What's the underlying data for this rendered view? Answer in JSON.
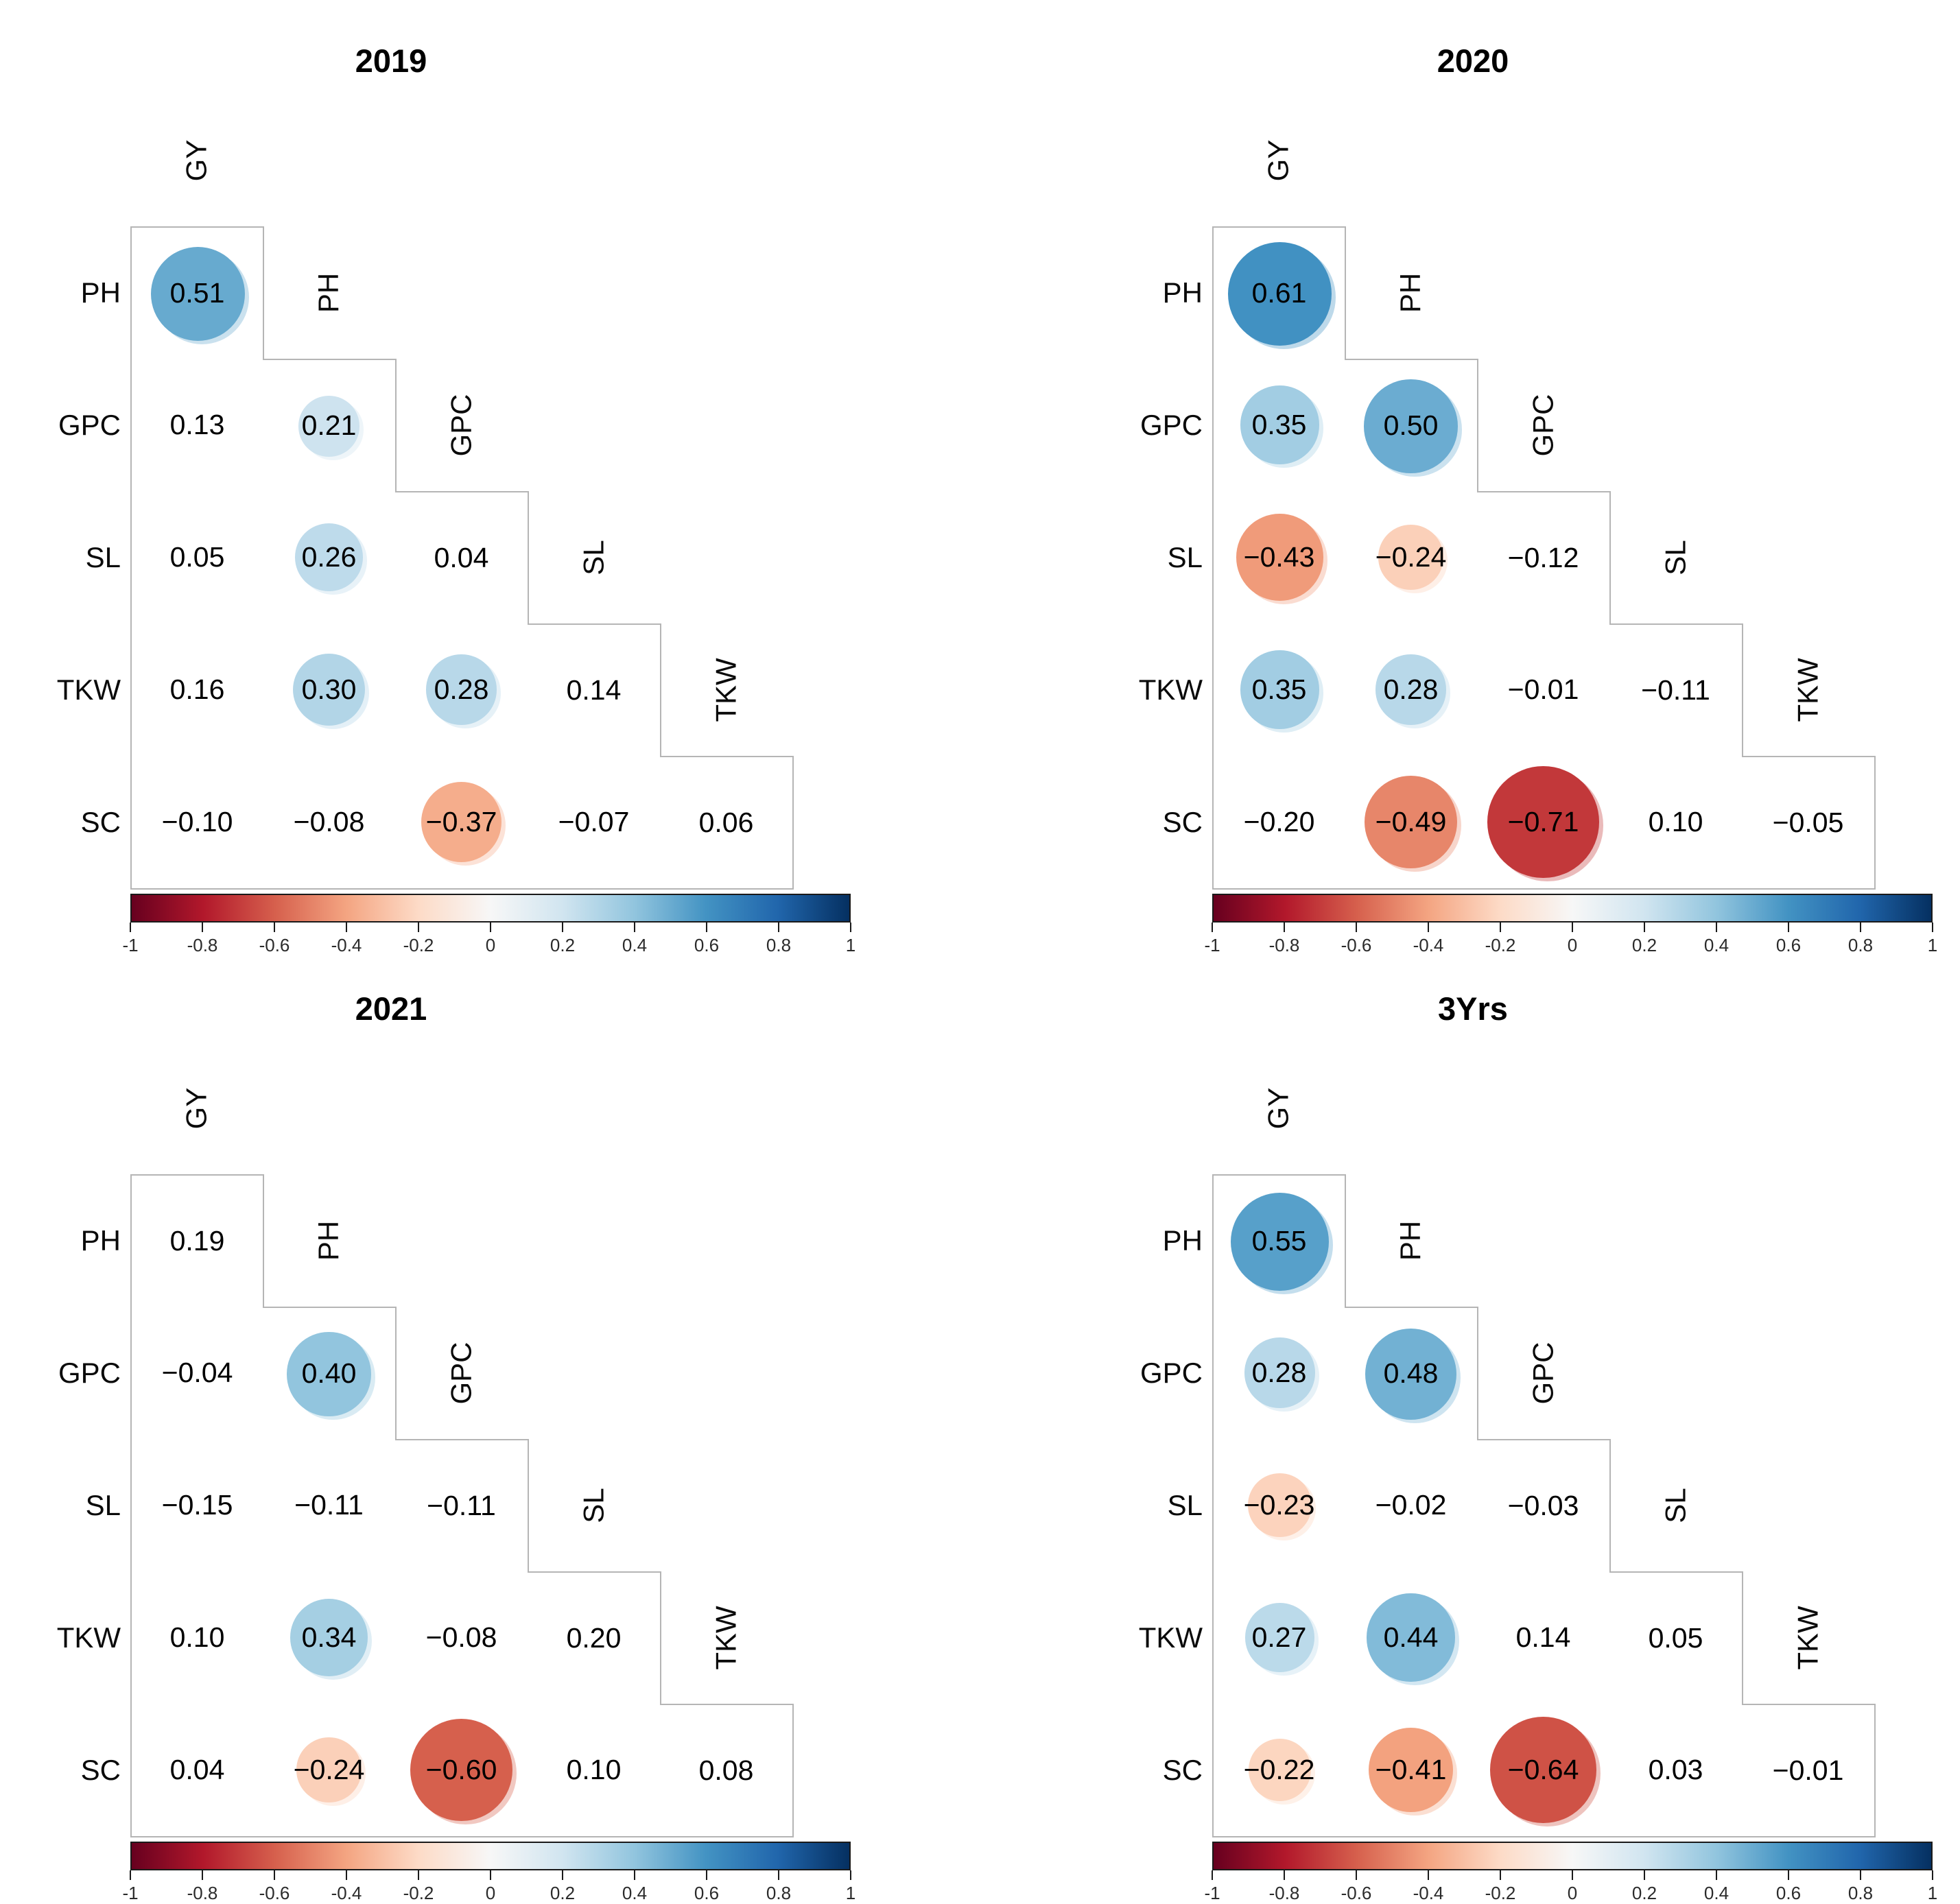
{
  "style": {
    "background": "#ffffff",
    "grid_line_color": "#b5b5b5",
    "text_color": "#000000",
    "colorbar_border_color": "#1a1a1a",
    "colormap_stops": [
      "#67001F",
      "#B2182B",
      "#D6604D",
      "#F4A582",
      "#FDDBC7",
      "#F7F7F7",
      "#D1E5F0",
      "#92C5DE",
      "#4393C3",
      "#2166AC",
      "#053061"
    ]
  },
  "chart_data": [
    {
      "type": "heatmap",
      "subtype": "correlation-matrix-lower-triangle",
      "title": "2019",
      "variables": [
        "GY",
        "PH",
        "GPC",
        "SL",
        "TKW",
        "SC"
      ],
      "row_labels": [
        "PH",
        "GPC",
        "SL",
        "TKW",
        "SC"
      ],
      "col_labels": [
        "GY",
        "PH",
        "GPC",
        "SL",
        "TKW"
      ],
      "diag_labels": [
        "GY",
        "PH",
        "GPC",
        "SL",
        "TKW"
      ],
      "values": [
        [
          0.51
        ],
        [
          0.13,
          0.21
        ],
        [
          0.05,
          0.26,
          0.04
        ],
        [
          0.16,
          0.3,
          0.28,
          0.14
        ],
        [
          -0.1,
          -0.08,
          -0.37,
          -0.07,
          0.06
        ]
      ],
      "circled": [
        [
          true
        ],
        [
          false,
          true
        ],
        [
          false,
          true,
          false
        ],
        [
          false,
          true,
          true,
          false
        ],
        [
          false,
          false,
          true,
          false,
          false
        ]
      ],
      "value_range": [
        -1,
        1
      ],
      "legend_position": "bottom",
      "colorbar_ticks": [
        "-1",
        "-0.8",
        "-0.6",
        "-0.4",
        "-0.2",
        "0",
        "0.2",
        "0.4",
        "0.6",
        "0.8",
        "1"
      ]
    },
    {
      "type": "heatmap",
      "subtype": "correlation-matrix-lower-triangle",
      "title": "2020",
      "variables": [
        "GY",
        "PH",
        "GPC",
        "SL",
        "TKW",
        "SC"
      ],
      "row_labels": [
        "PH",
        "GPC",
        "SL",
        "TKW",
        "SC"
      ],
      "col_labels": [
        "GY",
        "PH",
        "GPC",
        "SL",
        "TKW"
      ],
      "diag_labels": [
        "GY",
        "PH",
        "GPC",
        "SL",
        "TKW"
      ],
      "values": [
        [
          0.61
        ],
        [
          0.35,
          0.5
        ],
        [
          -0.43,
          -0.24,
          -0.12
        ],
        [
          0.35,
          0.28,
          -0.01,
          -0.11
        ],
        [
          -0.2,
          -0.49,
          -0.71,
          0.1,
          -0.05
        ]
      ],
      "circled": [
        [
          true
        ],
        [
          true,
          true
        ],
        [
          true,
          true,
          false
        ],
        [
          true,
          true,
          false,
          false
        ],
        [
          false,
          true,
          true,
          false,
          false
        ]
      ],
      "value_range": [
        -1,
        1
      ],
      "legend_position": "bottom",
      "colorbar_ticks": [
        "-1",
        "-0.8",
        "-0.6",
        "-0.4",
        "-0.2",
        "0",
        "0.2",
        "0.4",
        "0.6",
        "0.8",
        "1"
      ]
    },
    {
      "type": "heatmap",
      "subtype": "correlation-matrix-lower-triangle",
      "title": "2021",
      "variables": [
        "GY",
        "PH",
        "GPC",
        "SL",
        "TKW",
        "SC"
      ],
      "row_labels": [
        "PH",
        "GPC",
        "SL",
        "TKW",
        "SC"
      ],
      "col_labels": [
        "GY",
        "PH",
        "GPC",
        "SL",
        "TKW"
      ],
      "diag_labels": [
        "GY",
        "PH",
        "GPC",
        "SL",
        "TKW"
      ],
      "values": [
        [
          0.19
        ],
        [
          -0.04,
          0.4
        ],
        [
          -0.15,
          -0.11,
          -0.11
        ],
        [
          0.1,
          0.34,
          -0.08,
          0.2
        ],
        [
          0.04,
          -0.24,
          -0.6,
          0.1,
          0.08
        ]
      ],
      "circled": [
        [
          false
        ],
        [
          false,
          true
        ],
        [
          false,
          false,
          false
        ],
        [
          false,
          true,
          false,
          false
        ],
        [
          false,
          true,
          true,
          false,
          false
        ]
      ],
      "value_range": [
        -1,
        1
      ],
      "legend_position": "bottom",
      "colorbar_ticks": [
        "-1",
        "-0.8",
        "-0.6",
        "-0.4",
        "-0.2",
        "0",
        "0.2",
        "0.4",
        "0.6",
        "0.8",
        "1"
      ]
    },
    {
      "type": "heatmap",
      "subtype": "correlation-matrix-lower-triangle",
      "title": "3Yrs",
      "variables": [
        "GY",
        "PH",
        "GPC",
        "SL",
        "TKW",
        "SC"
      ],
      "row_labels": [
        "PH",
        "GPC",
        "SL",
        "TKW",
        "SC"
      ],
      "col_labels": [
        "GY",
        "PH",
        "GPC",
        "SL",
        "TKW"
      ],
      "diag_labels": [
        "GY",
        "PH",
        "GPC",
        "SL",
        "TKW"
      ],
      "values": [
        [
          0.55
        ],
        [
          0.28,
          0.48
        ],
        [
          -0.23,
          -0.02,
          -0.03
        ],
        [
          0.27,
          0.44,
          0.14,
          0.05
        ],
        [
          -0.22,
          -0.41,
          -0.64,
          0.03,
          -0.01
        ]
      ],
      "circled": [
        [
          true
        ],
        [
          true,
          true
        ],
        [
          true,
          false,
          false
        ],
        [
          true,
          true,
          false,
          false
        ],
        [
          true,
          true,
          true,
          false,
          false
        ]
      ],
      "value_range": [
        -1,
        1
      ],
      "legend_position": "bottom",
      "colorbar_ticks": [
        "-1",
        "-0.8",
        "-0.6",
        "-0.4",
        "-0.2",
        "0",
        "0.2",
        "0.4",
        "0.6",
        "0.8",
        "1"
      ]
    }
  ]
}
